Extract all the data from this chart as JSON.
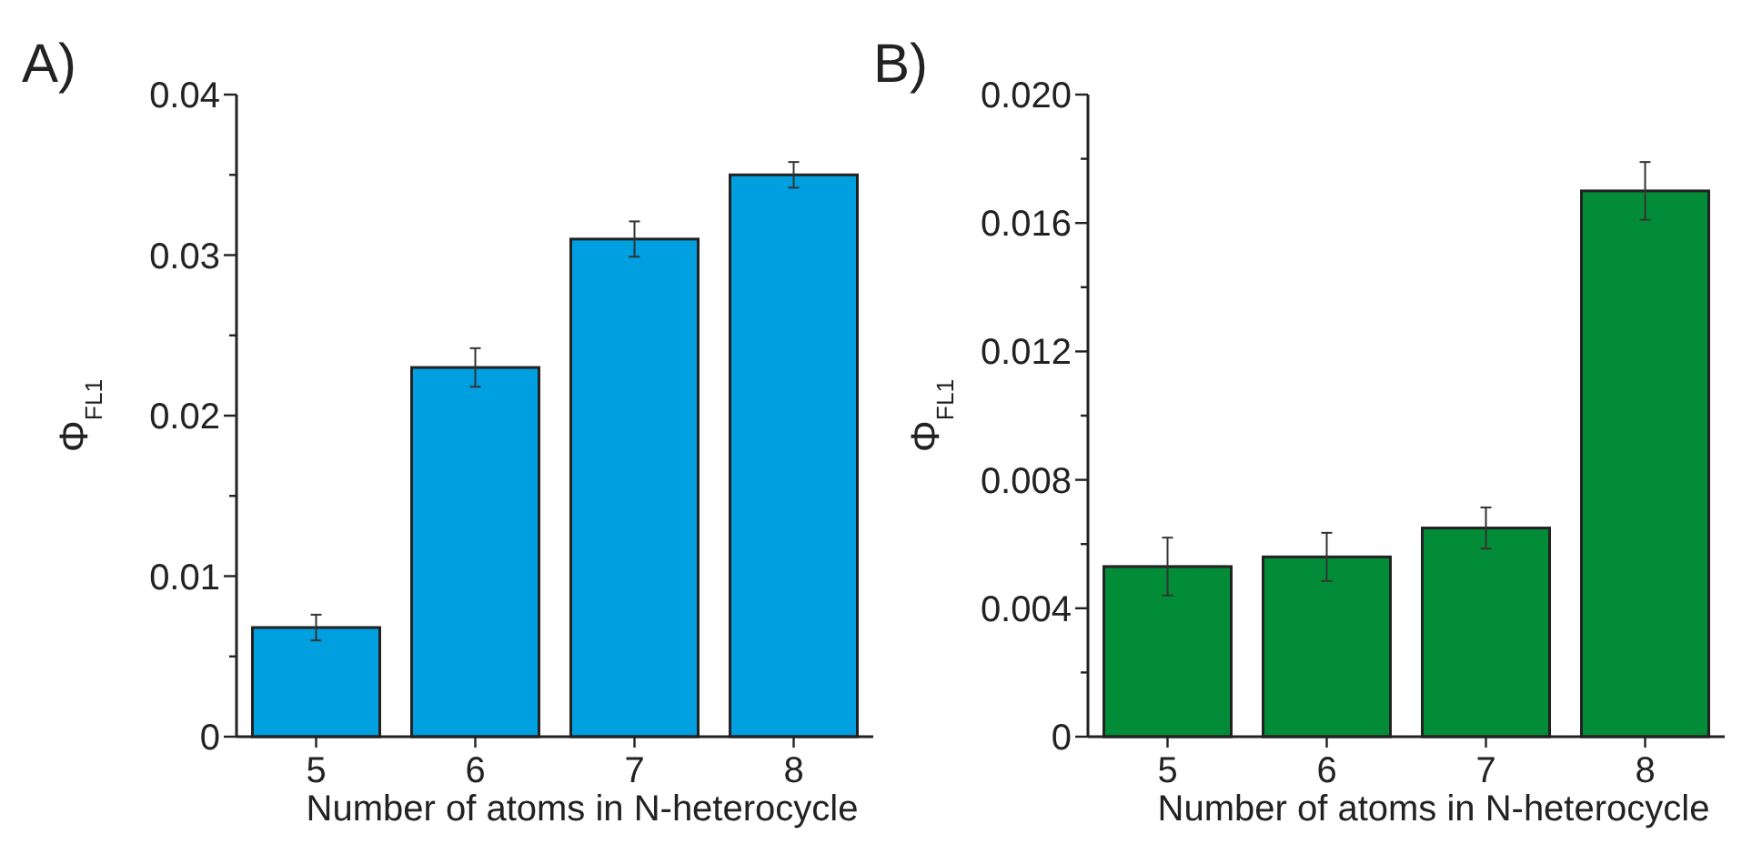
{
  "chart_data": [
    {
      "type": "bar",
      "title": "A)",
      "xlabel": "Number of atoms in N-heterocycle",
      "ylabel": "Φ$_{FL1}$",
      "categories": [
        "5",
        "6",
        "7",
        "8"
      ],
      "values": [
        0.0068,
        0.023,
        0.031,
        0.035
      ],
      "errors": [
        0.0008,
        0.0012,
        0.0011,
        0.0008
      ],
      "color": "#009fe0",
      "ylim": [
        0,
        0.04
      ],
      "yticks": [
        0,
        {
          "value": 0.005,
          "label": null
        },
        0.01,
        {
          "value": 0.015,
          "label": null
        },
        0.02,
        {
          "value": 0.025,
          "label": null
        },
        0.03,
        {
          "value": 0.035,
          "label": null
        },
        0.04
      ]
    },
    {
      "type": "bar",
      "title": "B)",
      "xlabel": "Number of atoms in N-heterocycle",
      "ylabel": "Φ$_{FL1}$",
      "categories": [
        "5",
        "6",
        "7",
        "8"
      ],
      "values": [
        0.0053,
        0.0056,
        0.0065,
        0.017
      ],
      "errors": [
        0.0009,
        0.00075,
        0.00064,
        0.0009
      ],
      "color": "#038c37",
      "ylim": [
        0,
        0.02
      ],
      "yticks": [
        0,
        {
          "value": 0.002,
          "label": null
        },
        {
          "value": 0.004,
          "label": "0.004"
        },
        {
          "value": 0.006,
          "label": null
        },
        {
          "value": 0.008,
          "label": "0.008"
        },
        {
          "value": 0.01,
          "label": null
        },
        {
          "value": 0.012,
          "label": "0.012"
        },
        {
          "value": 0.014,
          "label": null
        },
        {
          "value": 0.016,
          "label": "0.016"
        },
        {
          "value": 0.018,
          "label": null
        },
        {
          "value": 0.02,
          "label": "0.020"
        }
      ]
    }
  ]
}
